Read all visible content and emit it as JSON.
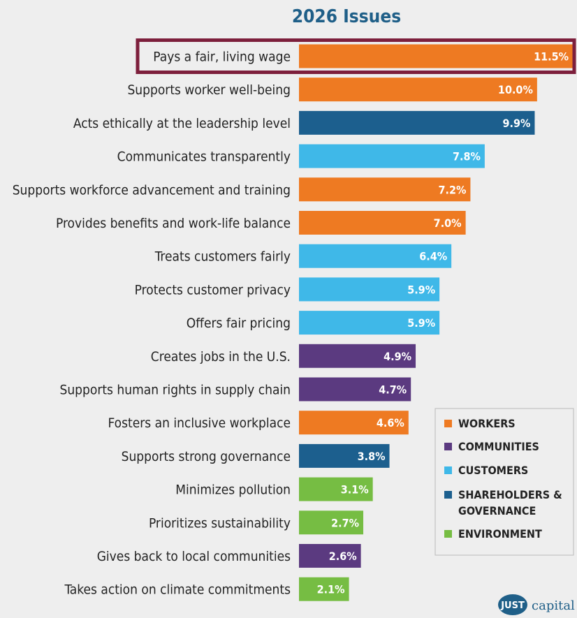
{
  "chart_data": {
    "type": "bar",
    "orientation": "horizontal",
    "title": "2026 Issues",
    "categories": [
      "Pays a fair, living wage",
      "Supports worker well-being",
      "Acts ethically at the leadership level",
      "Communicates transparently",
      "Supports workforce advancement and training",
      "Provides benefits and work-life balance",
      "Treats customers fairly",
      "Protects customer privacy",
      "Offers fair pricing",
      "Creates jobs in the U.S.",
      "Supports human rights in supply chain",
      "Fosters an inclusive workplace",
      "Supports strong governance",
      "Minimizes pollution",
      "Prioritizes sustainability",
      "Gives back to local communities",
      "Takes action on climate commitments"
    ],
    "values": [
      11.5,
      10.0,
      9.9,
      7.8,
      7.2,
      7.0,
      6.4,
      5.9,
      5.9,
      4.9,
      4.7,
      4.6,
      3.8,
      3.1,
      2.7,
      2.6,
      2.1
    ],
    "value_labels": [
      "11.5%",
      "10.0%",
      "9.9%",
      "7.8%",
      "7.2%",
      "7.0%",
      "6.4%",
      "5.9%",
      "5.9%",
      "4.9%",
      "4.7%",
      "4.6%",
      "3.8%",
      "3.1%",
      "2.7%",
      "2.6%",
      "2.1%"
    ],
    "groups": [
      "workers",
      "workers",
      "shareholders",
      "customers",
      "workers",
      "workers",
      "customers",
      "customers",
      "customers",
      "communities",
      "communities",
      "workers",
      "shareholders",
      "environment",
      "environment",
      "communities",
      "environment"
    ],
    "highlighted_category": "Pays a fair, living wage",
    "legend": {
      "placement": "bottom-right",
      "items": [
        {
          "key": "workers",
          "label": "WORKERS"
        },
        {
          "key": "communities",
          "label": "COMMUNITIES"
        },
        {
          "key": "customers",
          "label": "CUSTOMERS"
        },
        {
          "key": "shareholders",
          "label": "SHAREHOLDERS & GOVERNANCE"
        },
        {
          "key": "environment",
          "label": "ENVIRONMENT"
        }
      ]
    },
    "colors": {
      "workers": "#ee7a22",
      "communities": "#5b3a80",
      "customers": "#3fb8e8",
      "shareholders": "#1c5f8e",
      "environment": "#76bd43",
      "highlight_border": "#7d1f3c"
    },
    "xlim": [
      0,
      11.5
    ]
  },
  "brand": {
    "badge": "JUST",
    "text": "capital"
  }
}
